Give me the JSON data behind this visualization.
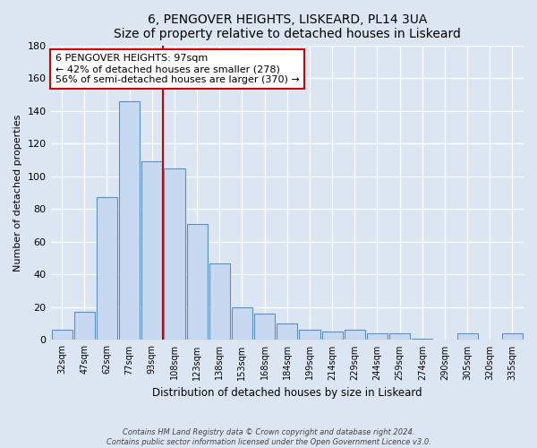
{
  "title": "6, PENGOVER HEIGHTS, LISKEARD, PL14 3UA",
  "subtitle": "Size of property relative to detached houses in Liskeard",
  "xlabel": "Distribution of detached houses by size in Liskeard",
  "ylabel": "Number of detached properties",
  "bar_labels": [
    "32sqm",
    "47sqm",
    "62sqm",
    "77sqm",
    "93sqm",
    "108sqm",
    "123sqm",
    "138sqm",
    "153sqm",
    "168sqm",
    "184sqm",
    "199sqm",
    "214sqm",
    "229sqm",
    "244sqm",
    "259sqm",
    "274sqm",
    "290sqm",
    "305sqm",
    "320sqm",
    "335sqm"
  ],
  "bar_values": [
    6,
    17,
    87,
    146,
    109,
    105,
    71,
    47,
    20,
    16,
    10,
    6,
    5,
    6,
    4,
    4,
    1,
    0,
    4,
    0,
    4
  ],
  "bar_color": "#c6d9f1",
  "bar_edge_color": "#5b8fc4",
  "ylim": [
    0,
    180
  ],
  "yticks": [
    0,
    20,
    40,
    60,
    80,
    100,
    120,
    140,
    160,
    180
  ],
  "vline_x": 4.5,
  "vline_color": "#cc0000",
  "annotation_title": "6 PENGOVER HEIGHTS: 97sqm",
  "annotation_line1": "← 42% of detached houses are smaller (278)",
  "annotation_line2": "56% of semi-detached houses are larger (370) →",
  "annotation_box_color": "#ffffff",
  "annotation_box_edge": "#cc0000",
  "footer1": "Contains HM Land Registry data © Crown copyright and database right 2024.",
  "footer2": "Contains public sector information licensed under the Open Government Licence v3.0.",
  "bg_color": "#dce6f2",
  "plot_bg_color": "#dce6f2"
}
